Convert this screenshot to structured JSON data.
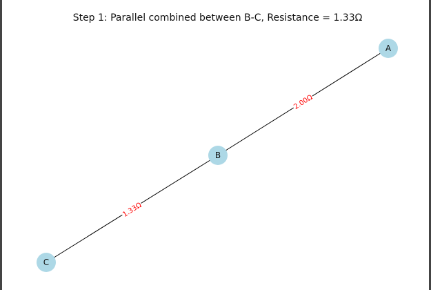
{
  "title": "Step 1: Parallel combined between B-C, Resistance = 1.33Ω",
  "colors": {
    "node_fill": "#add8e6",
    "edge": "#000000",
    "edge_label": "#ff0000",
    "frame_border": "#444444"
  },
  "nodes": [
    {
      "id": "A",
      "label": "A"
    },
    {
      "id": "B",
      "label": "B"
    },
    {
      "id": "C",
      "label": "C"
    }
  ],
  "edges": [
    {
      "from": "A",
      "to": "B",
      "label": "2.00Ω"
    },
    {
      "from": "B",
      "to": "C",
      "label": "1.33Ω"
    }
  ]
}
